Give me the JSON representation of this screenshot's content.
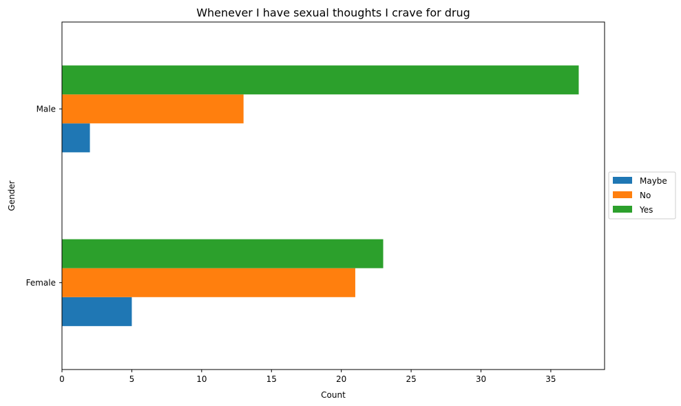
{
  "chart_data": {
    "type": "bar",
    "orientation": "horizontal",
    "title": "Whenever I have sexual thoughts I crave for drug",
    "xlabel": "Count",
    "ylabel": "Gender",
    "categories": [
      "Female",
      "Male"
    ],
    "series": [
      {
        "name": "Maybe",
        "values": [
          5,
          2
        ],
        "color": "#1f77b4"
      },
      {
        "name": "No",
        "values": [
          21,
          13
        ],
        "color": "#ff7f0e"
      },
      {
        "name": "Yes",
        "values": [
          23,
          37
        ],
        "color": "#2ca02c"
      }
    ],
    "xlim": [
      0,
      38.85
    ],
    "xticks": [
      0,
      5,
      10,
      15,
      20,
      25,
      30,
      35
    ],
    "grid": false,
    "legend_position": "center-right, outside plot"
  }
}
